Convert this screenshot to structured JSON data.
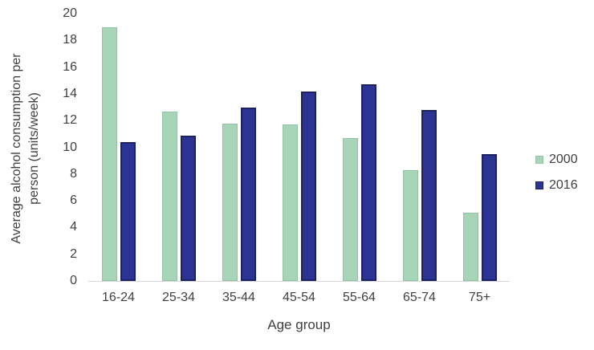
{
  "chart_data": {
    "type": "bar",
    "title": "",
    "categories": [
      "16-24",
      "25-34",
      "35-44",
      "45-54",
      "55-64",
      "65-74",
      "75+"
    ],
    "series": [
      {
        "name": "2000",
        "color": "#a7d3b7",
        "border_color": "#8fc4a4",
        "values": [
          19.0,
          12.7,
          11.8,
          11.7,
          10.7,
          8.3,
          5.1
        ]
      },
      {
        "name": "2016",
        "color": "#2b3493",
        "border_color": "#1b2161",
        "values": [
          10.4,
          10.9,
          13.0,
          14.2,
          14.7,
          12.8,
          9.5
        ]
      }
    ],
    "xlabel": "Age group",
    "ylabel": "Average alcohol consumption per person (units/week)",
    "ylabel_lines": [
      "Average alcohol consumption per",
      "person (units/week)"
    ],
    "ylim": [
      0,
      20
    ],
    "ytick_step": 2,
    "grid": false,
    "legend_position": "right",
    "axis_line_color": "#d6d6d6",
    "text_color": "#3f3f3f",
    "background_color": "#ffffff"
  }
}
